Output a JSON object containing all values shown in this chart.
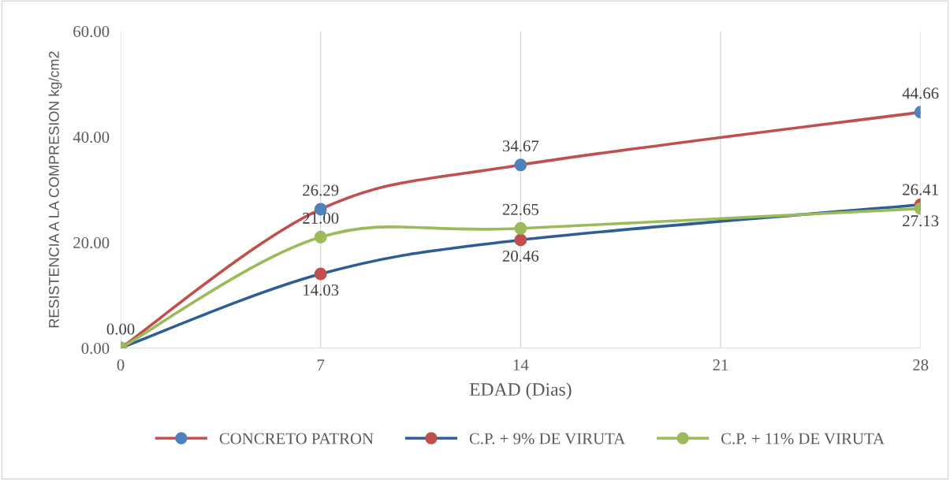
{
  "chart_data": {
    "type": "line",
    "xlabel": "EDAD (Dias)",
    "ylabel": "RESISTENCIA A LA COMPRESION kg/cm2",
    "x": [
      0,
      7,
      14,
      28
    ],
    "series": [
      {
        "name": "CONCRETO PATRON",
        "color": "#c0504d",
        "colors": [
          "#4f81bd",
          "#4f81bd",
          "#4f81bd",
          "#4f81bd"
        ],
        "values": [
          0.0,
          26.29,
          34.67,
          44.66
        ],
        "value_labels": [
          "0.00",
          "26.29",
          "34.67",
          "44.66"
        ]
      },
      {
        "name": "C.P. + 9% DE VIRUTA",
        "color": "#2e5e94",
        "colors": [
          "#c0504d",
          "#c0504d",
          "#c0504d",
          "#c0504d"
        ],
        "values": [
          0.0,
          14.03,
          20.46,
          27.13
        ],
        "value_labels": [
          null,
          "14.03",
          "20.46",
          "27.13"
        ]
      },
      {
        "name": "C.P. + 11% DE VIRUTA",
        "color": "#9bbb59",
        "colors": [
          "#9bbb59",
          "#9bbb59",
          "#9bbb59",
          "#9bbb59"
        ],
        "values": [
          0.0,
          21.0,
          22.65,
          26.41
        ],
        "value_labels": [
          null,
          "21.00",
          "22.65",
          "26.41"
        ]
      }
    ],
    "xlim": [
      0,
      28
    ],
    "xticks": [
      0,
      7,
      14,
      21,
      28
    ],
    "ylim": [
      0,
      60
    ],
    "yticks": [
      {
        "value": 0,
        "label": "0.00"
      },
      {
        "value": 20,
        "label": "20.00"
      },
      {
        "value": 40,
        "label": "40.00"
      },
      {
        "value": 60,
        "label": "60.00"
      }
    ],
    "grid": "x",
    "legend": "bottom",
    "marker": "circle",
    "line_style": "solid"
  }
}
